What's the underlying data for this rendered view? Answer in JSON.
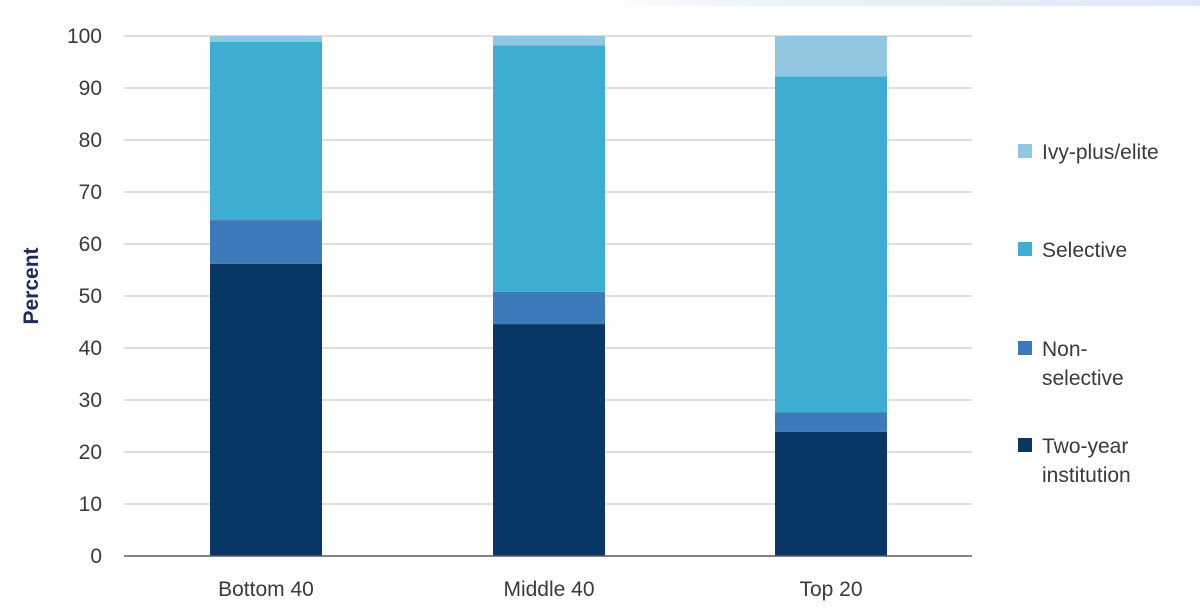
{
  "chart_data": {
    "type": "bar",
    "stacked": true,
    "title": "",
    "xlabel": "",
    "ylabel": "Percent",
    "ylim": [
      0,
      100
    ],
    "yticks": [
      0,
      10,
      20,
      30,
      40,
      50,
      60,
      70,
      80,
      90,
      100
    ],
    "grid": true,
    "legend_position": "right",
    "categories": [
      "Bottom 40",
      "Middle 40",
      "Top 20"
    ],
    "series": [
      {
        "name": "Two-year institution",
        "color": "#083766",
        "values": [
          56.2,
          44.6,
          23.9
        ]
      },
      {
        "name": "Non-selective",
        "color": "#3d7ab9",
        "values": [
          8.4,
          6.2,
          3.7
        ]
      },
      {
        "name": "Selective",
        "color": "#3dadd1",
        "values": [
          34.3,
          47.4,
          64.6
        ]
      },
      {
        "name": "Ivy-plus/elite",
        "color": "#93c6e0",
        "values": [
          1.1,
          1.8,
          7.8
        ]
      }
    ],
    "legend": [
      {
        "lines": [
          "Ivy-plus/elite"
        ],
        "color": "#93c6e0"
      },
      {
        "lines": [
          "Selective"
        ],
        "color": "#3dadd1"
      },
      {
        "lines": [
          "Non-",
          "selective"
        ],
        "color": "#3d7ab9"
      },
      {
        "lines": [
          "Two-year",
          "institution"
        ],
        "color": "#083766"
      }
    ]
  }
}
